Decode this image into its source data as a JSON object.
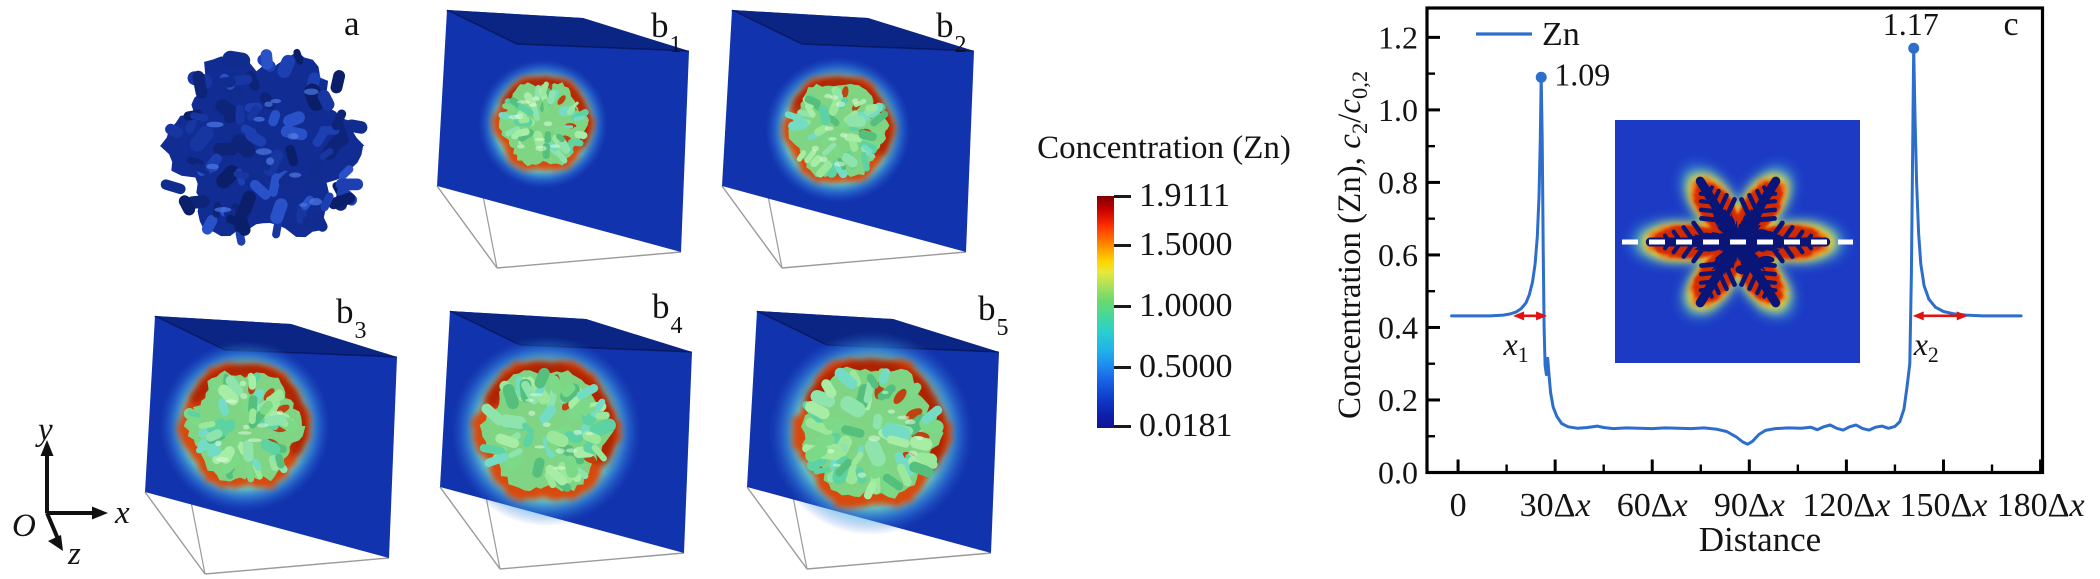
{
  "figure": {
    "panels": {
      "a_label": "a",
      "b_labels": [
        {
          "base": "b",
          "sub": "1"
        },
        {
          "base": "b",
          "sub": "2"
        },
        {
          "base": "b",
          "sub": "3"
        },
        {
          "base": "b",
          "sub": "4"
        },
        {
          "base": "b",
          "sub": "5"
        }
      ]
    },
    "triad": {
      "origin": "O",
      "x": "x",
      "y": "y",
      "z": "z"
    },
    "colorbar": {
      "title": "Concentration (Zn)",
      "ticks": [
        "1.9111",
        "1.5000",
        "1.0000",
        "0.5000",
        "0.0181"
      ]
    },
    "colors": {
      "box_blue": "#1133ae",
      "box_top_blue": "#0a2584",
      "curve_blue": "#2d6ecb",
      "arrow_red": "#e01212",
      "inset_bg": "#1c3ac4",
      "dendrite_green": "#7fd583",
      "ring_orange": "#d84a0a",
      "colorbar_max_red": "#7e0000",
      "colorbar_min_navy": "#101495",
      "dashed_line_white": "#ffffff"
    }
  },
  "chart_data": {
    "type": "line",
    "panel_label": "c",
    "legend": [
      "Zn"
    ],
    "legend_position": "upper left",
    "xlabel": "Distance",
    "ylabel": "Concentration (Zn), c2/c0,2",
    "ylabel_parts": [
      {
        "t": "Concentration (Zn), "
      },
      {
        "t": "c",
        "i": 1
      },
      {
        "t": "2",
        "s": 1
      },
      {
        "t": "/"
      },
      {
        "t": "c",
        "i": 1
      },
      {
        "t": "0,2",
        "s": 1
      }
    ],
    "xlim": [
      -9.6,
      180.6
    ],
    "ylim": [
      0,
      1.281
    ],
    "grid": false,
    "xticks": [
      {
        "v": 0,
        "label": "0"
      },
      {
        "v": 30,
        "label": "30Δx"
      },
      {
        "v": 60,
        "label": "60Δx"
      },
      {
        "v": 90,
        "label": "90Δx"
      },
      {
        "v": 120,
        "label": "120Δx"
      },
      {
        "v": 150,
        "label": "150Δx"
      },
      {
        "v": 180,
        "label": "180Δx"
      }
    ],
    "yticks": [
      "0.0",
      "0.2",
      "0.4",
      "0.6",
      "0.8",
      "1.0",
      "1.2"
    ],
    "x_minor_ticks": [
      15,
      45,
      75,
      105,
      135,
      165
    ],
    "y_minor_ticks": [
      0.1,
      0.3,
      0.5,
      0.7,
      0.9,
      1.1
    ],
    "annotations": [
      {
        "text": "1.09",
        "x": 25.7,
        "y": 1.09
      },
      {
        "text": "1.17",
        "x": 140.8,
        "y": 1.17
      }
    ],
    "arrow_annotations": [
      {
        "base": "x",
        "sub": "1",
        "x_from": 17,
        "x_to": 27.5,
        "y": 0.432
      },
      {
        "base": "x",
        "sub": "2",
        "x_from": 140.5,
        "x_to": 157.5,
        "y": 0.432
      }
    ],
    "baseline_value": 0.432,
    "series": [
      {
        "name": "Zn",
        "color": "#2d6ecb",
        "points": [
          [
            -2,
            0.432
          ],
          [
            4,
            0.432
          ],
          [
            10,
            0.432
          ],
          [
            14,
            0.434
          ],
          [
            16,
            0.437
          ],
          [
            18,
            0.443
          ],
          [
            19.5,
            0.452
          ],
          [
            21,
            0.468
          ],
          [
            22,
            0.49
          ],
          [
            23,
            0.525
          ],
          [
            23.8,
            0.575
          ],
          [
            24.5,
            0.65
          ],
          [
            25,
            0.76
          ],
          [
            25.4,
            0.92
          ],
          [
            25.7,
            1.09
          ],
          [
            26,
            0.92
          ],
          [
            26.3,
            0.62
          ],
          [
            26.6,
            0.4
          ],
          [
            26.9,
            0.295
          ],
          [
            27.3,
            0.27
          ],
          [
            27.7,
            0.315
          ],
          [
            28.1,
            0.27
          ],
          [
            28.6,
            0.22
          ],
          [
            29.4,
            0.18
          ],
          [
            30.5,
            0.155
          ],
          [
            32,
            0.135
          ],
          [
            34,
            0.126
          ],
          [
            37,
            0.122
          ],
          [
            40,
            0.124
          ],
          [
            43,
            0.128
          ],
          [
            45,
            0.124
          ],
          [
            48,
            0.121
          ],
          [
            52,
            0.123
          ],
          [
            56,
            0.122
          ],
          [
            60,
            0.121
          ],
          [
            64,
            0.123
          ],
          [
            68,
            0.122
          ],
          [
            72,
            0.121
          ],
          [
            76,
            0.123
          ],
          [
            80,
            0.119
          ],
          [
            83,
            0.113
          ],
          [
            86,
            0.098
          ],
          [
            88,
            0.084
          ],
          [
            89.5,
            0.078
          ],
          [
            91,
            0.086
          ],
          [
            93,
            0.105
          ],
          [
            95,
            0.116
          ],
          [
            98,
            0.121
          ],
          [
            102,
            0.123
          ],
          [
            106,
            0.122
          ],
          [
            109,
            0.125
          ],
          [
            111,
            0.118
          ],
          [
            113,
            0.126
          ],
          [
            115,
            0.131
          ],
          [
            117,
            0.122
          ],
          [
            119,
            0.117
          ],
          [
            121,
            0.126
          ],
          [
            123,
            0.131
          ],
          [
            125,
            0.121
          ],
          [
            127,
            0.117
          ],
          [
            129,
            0.125
          ],
          [
            131,
            0.128
          ],
          [
            133,
            0.122
          ],
          [
            135,
            0.127
          ],
          [
            136.5,
            0.14
          ],
          [
            137.8,
            0.175
          ],
          [
            138.8,
            0.24
          ],
          [
            139.6,
            0.3
          ],
          [
            140.1,
            0.55
          ],
          [
            140.5,
            0.9
          ],
          [
            140.8,
            1.17
          ],
          [
            141.2,
            0.98
          ],
          [
            141.7,
            0.8
          ],
          [
            142.3,
            0.66
          ],
          [
            143,
            0.575
          ],
          [
            144,
            0.515
          ],
          [
            145.5,
            0.478
          ],
          [
            147.5,
            0.456
          ],
          [
            150,
            0.444
          ],
          [
            153,
            0.438
          ],
          [
            157,
            0.434
          ],
          [
            162,
            0.432
          ],
          [
            168,
            0.432
          ],
          [
            174,
            0.432
          ]
        ]
      }
    ]
  }
}
